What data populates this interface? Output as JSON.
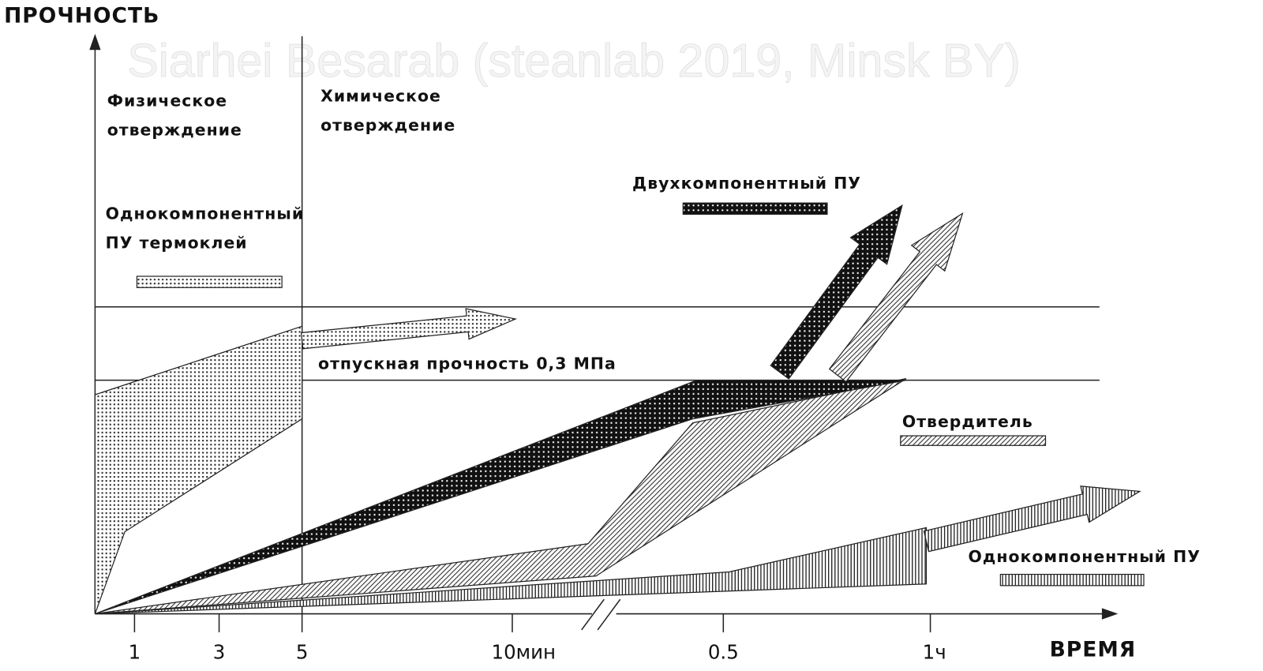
{
  "watermark": "Siarhei Besarab (steanlab 2019, Minsk BY)",
  "axes": {
    "y_label": "ПРОЧНОСТЬ",
    "x_label": "ВРЕМЯ",
    "x_ticks": [
      "1",
      "3",
      "5",
      "10мин",
      "0.5",
      "1ч"
    ]
  },
  "zones": {
    "physical": [
      "Физическое",
      "отверждение"
    ],
    "chemical": [
      "Химическое",
      "отверждение"
    ]
  },
  "legend": {
    "hot_melt": [
      "Однокомпонентный",
      "ПУ термоклей"
    ],
    "two_component": "Двухкомпонентный ПУ",
    "hardener": "Отвердитель",
    "one_component": "Однокомпонентный ПУ"
  },
  "threshold_label": "отпускная прочность 0,3 МПа"
}
